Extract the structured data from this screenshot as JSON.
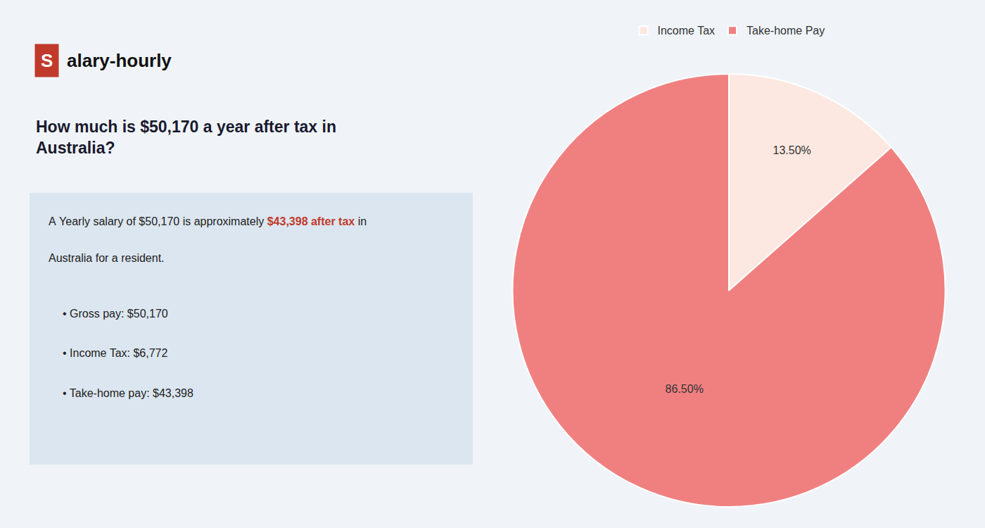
{
  "chart_data": {
    "type": "pie",
    "title": "How much is $50,170 a year after tax in\nAustralia?",
    "categories": [
      "Income Tax",
      "Take-home Pay"
    ],
    "values": [
      13.5,
      86.5
    ],
    "value_labels": [
      "13.50%",
      "86.50%"
    ],
    "colors": [
      "#fce8e0",
      "#f08080"
    ],
    "data_labels": true,
    "legend": "top",
    "annotations": [
      {
        "text": "S",
        "color": "#c0392b"
      },
      {
        "text": "alary-hourly"
      },
      {
        "text": "A Yearly salary of $50,170 is approximately "
      },
      {
        "text": "$43,398 after tax",
        "color": "#c0392b"
      },
      {
        "text": " in"
      },
      {
        "text": "Australia for a resident."
      },
      {
        "text": "• Gross pay: $50,170"
      },
      {
        "text": "• Income Tax: $6,772"
      },
      {
        "text": "• Take-home pay: $43,398"
      }
    ]
  }
}
